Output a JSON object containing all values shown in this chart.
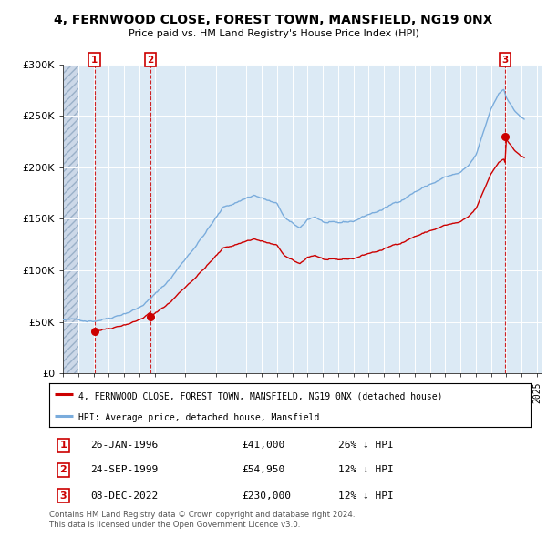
{
  "title": "4, FERNWOOD CLOSE, FOREST TOWN, MANSFIELD, NG19 0NX",
  "subtitle": "Price paid vs. HM Land Registry's House Price Index (HPI)",
  "ylim": [
    0,
    300000
  ],
  "xlim_start": 1994.0,
  "xlim_end": 2025.3,
  "yticks": [
    0,
    50000,
    100000,
    150000,
    200000,
    250000,
    300000
  ],
  "ytick_labels": [
    "£0",
    "£50K",
    "£100K",
    "£150K",
    "£200K",
    "£250K",
    "£300K"
  ],
  "transactions": [
    {
      "label": "1",
      "date": "26-JAN-1996",
      "date_num": 1996.07,
      "price": 41000,
      "pct": "26% ↓ HPI"
    },
    {
      "label": "2",
      "date": "24-SEP-1999",
      "date_num": 1999.73,
      "price": 54950,
      "pct": "12% ↓ HPI"
    },
    {
      "label": "3",
      "date": "08-DEC-2022",
      "date_num": 2022.93,
      "price": 230000,
      "pct": "12% ↓ HPI"
    }
  ],
  "legend_line1": "4, FERNWOOD CLOSE, FOREST TOWN, MANSFIELD, NG19 0NX (detached house)",
  "legend_line2": "HPI: Average price, detached house, Mansfield",
  "footer1": "Contains HM Land Registry data © Crown copyright and database right 2024.",
  "footer2": "This data is licensed under the Open Government Licence v3.0.",
  "plot_bg_color": "#dceaf5",
  "red_line_color": "#cc0000",
  "blue_line_color": "#7aacdc",
  "marker_color": "#cc0000",
  "grid_color": "#ffffff",
  "hatch_end": 1995.0
}
